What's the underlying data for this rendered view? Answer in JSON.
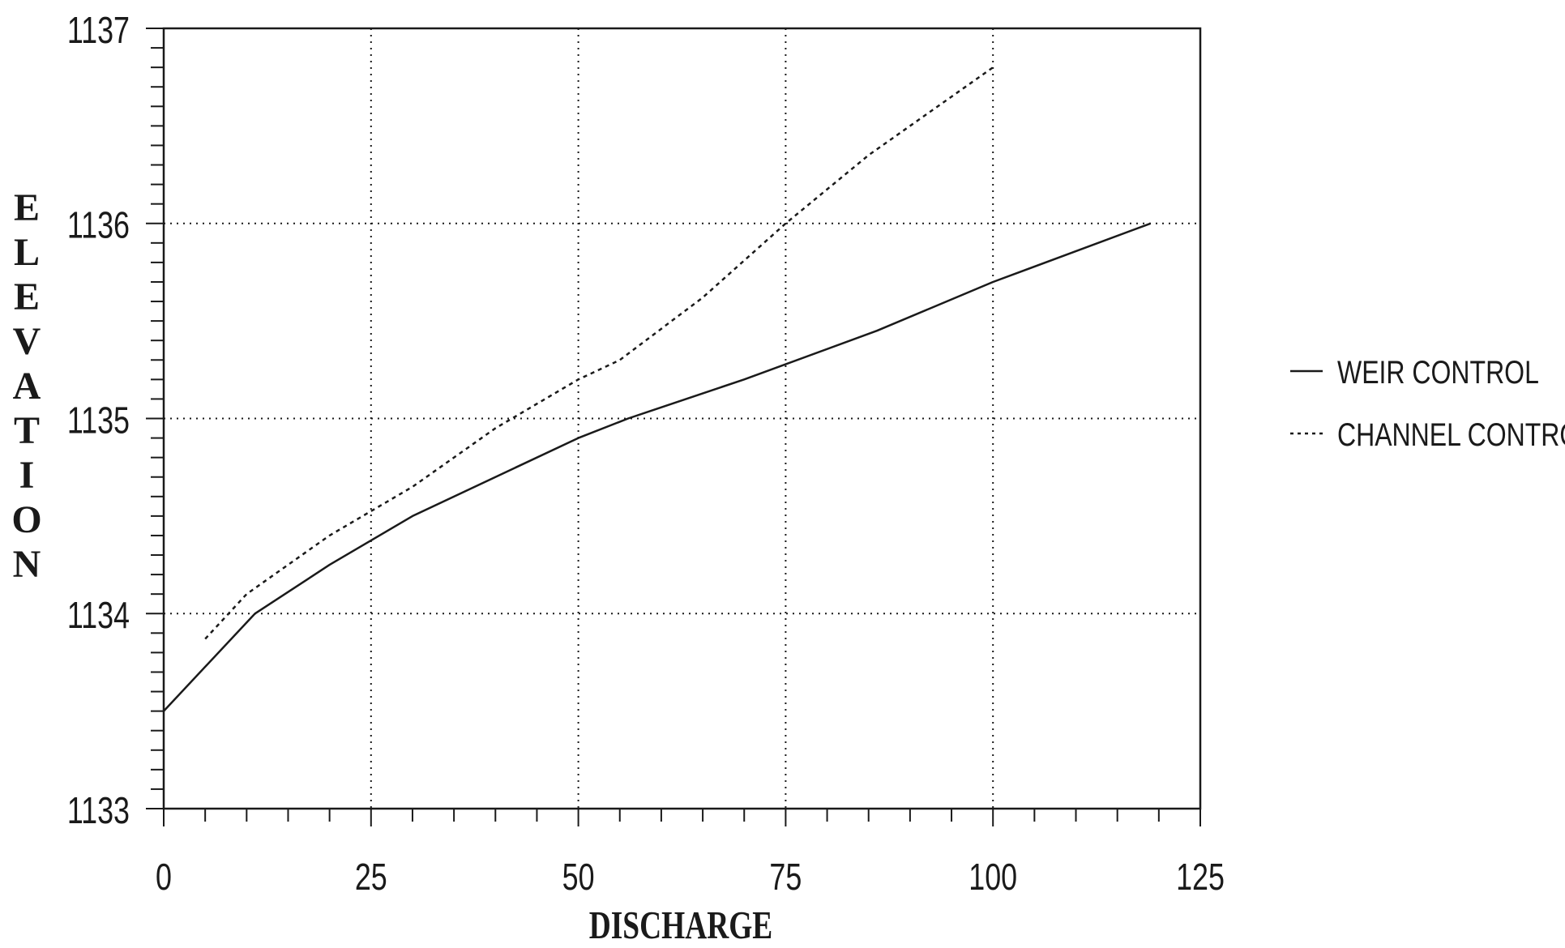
{
  "chart_data": {
    "type": "line",
    "xlabel": "DISCHARGE",
    "ylabel": "ELEVATION",
    "xlim": [
      0,
      125
    ],
    "ylim": [
      1133,
      1137
    ],
    "x_ticks": [
      0,
      25,
      50,
      75,
      100,
      125
    ],
    "y_ticks": [
      1133,
      1134,
      1135,
      1136,
      1137
    ],
    "x_minor_step": 5,
    "y_minor_step": 0.1,
    "x_tick_labels": [
      "0",
      "25",
      "50",
      "75",
      "100",
      "125"
    ],
    "y_tick_labels": [
      "1133",
      "1134",
      "1135",
      "1136",
      "1137"
    ],
    "grid": "dotted",
    "legend_position": "right",
    "series": [
      {
        "name": "WEIR CONTROL",
        "style": "solid",
        "x": [
          0,
          11,
          20,
          30,
          40,
          50,
          56,
          70,
          86,
          100,
          119
        ],
        "y": [
          1133.5,
          1134.0,
          1134.25,
          1134.5,
          1134.7,
          1134.9,
          1135.0,
          1135.2,
          1135.45,
          1135.7,
          1136.0
        ]
      },
      {
        "name": "CHANNEL CONTROL",
        "style": "dashed",
        "x": [
          5,
          10,
          20,
          30,
          40,
          50,
          55,
          65,
          75,
          85,
          100
        ],
        "y": [
          1133.87,
          1134.1,
          1134.4,
          1134.65,
          1134.95,
          1135.2,
          1135.3,
          1135.62,
          1136.0,
          1136.35,
          1136.8
        ]
      }
    ]
  }
}
